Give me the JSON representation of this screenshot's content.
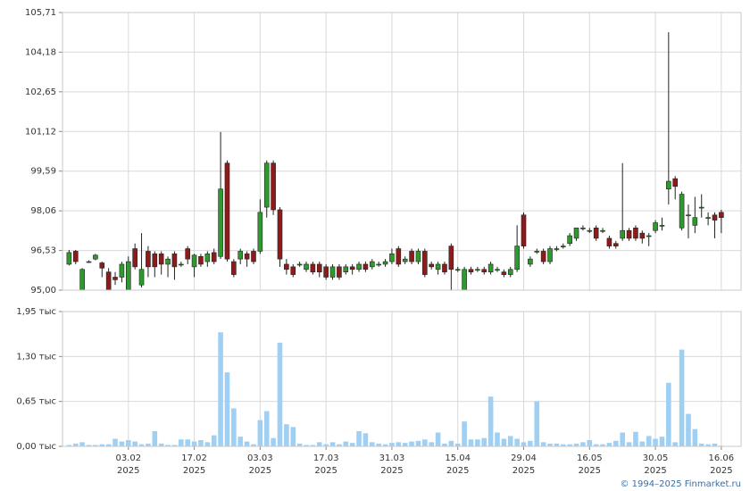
{
  "chart_data": [
    {
      "type": "candlestick",
      "xlim": [
        -1,
        102
      ],
      "ylim": [
        95,
        105.71
      ],
      "yticks": [
        {
          "value": 95,
          "label": "95,00"
        },
        {
          "value": 96.53,
          "label": "96,53"
        },
        {
          "value": 98.06,
          "label": "98,06"
        },
        {
          "value": 99.59,
          "label": "99,59"
        },
        {
          "value": 101.12,
          "label": "101,12"
        },
        {
          "value": 102.65,
          "label": "102,65"
        },
        {
          "value": 104.18,
          "label": "104,18"
        },
        {
          "value": 105.71,
          "label": "105,71"
        }
      ],
      "up_color": "#2e9a2e",
      "down_color": "#8e1b1b",
      "grid": true,
      "open": [
        96.0,
        96.5,
        95.0,
        96.1,
        96.2,
        96.05,
        95.7,
        95.5,
        95.5,
        95.0,
        96.6,
        95.2,
        96.5,
        96.4,
        96.4,
        96.0,
        96.4,
        96.0,
        96.6,
        95.9,
        96.3,
        96.1,
        96.45,
        96.3,
        99.9,
        96.1,
        96.2,
        96.4,
        96.5,
        96.5,
        98.2,
        99.9,
        98.1,
        96.0,
        95.9,
        96.0,
        95.8,
        96.0,
        96.0,
        95.9,
        95.5,
        95.9,
        95.7,
        95.9,
        95.8,
        96.0,
        95.9,
        96.0,
        96.0,
        96.1,
        96.6,
        96.1,
        96.5,
        96.1,
        96.5,
        96.0,
        95.8,
        96.0,
        96.7,
        95.8,
        95.0,
        95.8,
        95.8,
        95.8,
        95.7,
        95.8,
        95.7,
        95.6,
        95.8,
        97.9,
        96.0,
        96.5,
        96.5,
        96.1,
        96.6,
        96.7,
        96.8,
        97.0,
        97.4,
        97.3,
        97.4,
        97.3,
        97.0,
        96.8,
        97.0,
        97.3,
        97.4,
        97.2,
        97.1,
        97.3,
        97.5,
        98.9,
        99.3,
        97.4,
        97.9,
        97.5,
        98.2,
        97.8,
        97.9,
        98.0
      ],
      "high": [
        96.55,
        96.55,
        95.85,
        96.15,
        96.4,
        96.1,
        95.85,
        95.7,
        96.1,
        96.3,
        96.8,
        97.2,
        96.7,
        96.5,
        96.5,
        96.3,
        96.5,
        96.1,
        96.7,
        96.4,
        96.4,
        96.5,
        96.6,
        101.1,
        100.0,
        96.2,
        96.6,
        96.5,
        96.6,
        98.5,
        100.0,
        100.0,
        98.2,
        96.2,
        96.0,
        96.1,
        96.1,
        96.1,
        96.1,
        96.0,
        96.0,
        96.0,
        96.0,
        96.0,
        96.1,
        96.1,
        96.2,
        96.1,
        96.2,
        96.6,
        96.7,
        96.3,
        96.6,
        96.6,
        96.6,
        96.1,
        96.1,
        96.1,
        96.8,
        95.9,
        95.9,
        95.9,
        95.9,
        95.9,
        96.1,
        95.9,
        95.8,
        95.9,
        97.5,
        98.0,
        96.3,
        96.6,
        96.6,
        96.7,
        96.7,
        96.8,
        97.2,
        97.4,
        97.5,
        97.4,
        97.5,
        97.4,
        97.1,
        96.9,
        99.9,
        97.4,
        97.5,
        97.3,
        97.2,
        97.7,
        97.8,
        104.95,
        99.4,
        98.8,
        98.3,
        98.6,
        98.7,
        98.0,
        98.0,
        98.1
      ],
      "low": [
        95.95,
        96.0,
        95.0,
        96.05,
        96.15,
        95.5,
        95.0,
        95.2,
        95.3,
        95.0,
        95.8,
        95.1,
        95.5,
        95.5,
        95.6,
        95.5,
        95.4,
        95.9,
        96.0,
        95.5,
        95.9,
        95.9,
        96.0,
        96.2,
        96.1,
        95.5,
        96.0,
        95.9,
        96.0,
        96.4,
        97.8,
        97.9,
        95.9,
        95.6,
        95.5,
        95.9,
        95.7,
        95.6,
        95.5,
        95.4,
        95.4,
        95.4,
        95.6,
        95.6,
        95.7,
        95.7,
        95.8,
        95.9,
        95.9,
        96.0,
        95.9,
        96.0,
        96.0,
        96.0,
        95.5,
        95.8,
        95.6,
        95.6,
        95.0,
        95.7,
        95.0,
        95.6,
        95.7,
        95.6,
        95.6,
        95.7,
        95.5,
        95.5,
        95.7,
        96.6,
        95.9,
        96.4,
        96.0,
        96.0,
        96.5,
        96.6,
        96.7,
        96.9,
        97.3,
        97.2,
        96.9,
        97.2,
        96.6,
        96.6,
        96.9,
        96.9,
        96.9,
        96.8,
        96.7,
        97.2,
        97.3,
        98.3,
        98.5,
        97.3,
        97.0,
        97.2,
        97.8,
        97.5,
        97.0,
        97.2
      ],
      "close": [
        96.45,
        96.1,
        95.8,
        96.1,
        96.35,
        95.85,
        95.0,
        95.4,
        96.0,
        96.1,
        95.9,
        95.8,
        95.9,
        95.9,
        96.0,
        96.2,
        95.9,
        96.0,
        96.2,
        96.35,
        96.0,
        96.4,
        96.1,
        98.9,
        96.2,
        95.6,
        96.5,
        96.2,
        96.1,
        98.0,
        99.9,
        98.1,
        96.2,
        95.8,
        95.6,
        96.0,
        96.0,
        95.7,
        95.7,
        95.5,
        95.9,
        95.5,
        95.9,
        95.8,
        96.0,
        95.8,
        96.1,
        96.0,
        96.1,
        96.4,
        96.0,
        96.2,
        96.1,
        96.5,
        95.6,
        95.9,
        96.0,
        95.7,
        95.8,
        95.8,
        95.8,
        95.7,
        95.8,
        95.7,
        96.0,
        95.8,
        95.6,
        95.8,
        96.7,
        96.7,
        96.2,
        96.5,
        96.1,
        96.6,
        96.6,
        96.7,
        97.1,
        97.4,
        97.4,
        97.3,
        97.0,
        97.3,
        96.7,
        96.7,
        97.3,
        97.0,
        97.0,
        97.0,
        97.1,
        97.6,
        97.5,
        99.2,
        99.0,
        98.7,
        97.9,
        97.8,
        98.2,
        97.8,
        97.7,
        97.8
      ]
    },
    {
      "type": "bar",
      "xlim": [
        -1,
        102
      ],
      "ylim": [
        0,
        1950
      ],
      "yticks": [
        {
          "value": 0,
          "label": "0,00 тыс"
        },
        {
          "value": 650,
          "label": "0,65 тыс"
        },
        {
          "value": 1300,
          "label": "1,30 тыс"
        },
        {
          "value": 1950,
          "label": "1,95 тыс"
        }
      ],
      "xticks": [
        {
          "value": 9,
          "label": "03.02"
        },
        {
          "value": 19,
          "label": "17.02"
        },
        {
          "value": 29,
          "label": "03.03"
        },
        {
          "value": 39,
          "label": "17.03"
        },
        {
          "value": 49,
          "label": "31.03"
        },
        {
          "value": 59,
          "label": "15.04"
        },
        {
          "value": 69,
          "label": "29.04"
        },
        {
          "value": 79,
          "label": "16.05"
        },
        {
          "value": 89,
          "label": "30.05"
        },
        {
          "value": 99,
          "label": "16.06"
        }
      ],
      "xtick_year": "2025",
      "color": "#9fd0f3",
      "grid": true,
      "values": [
        20,
        40,
        60,
        20,
        20,
        30,
        30,
        110,
        70,
        90,
        70,
        30,
        40,
        220,
        40,
        20,
        20,
        100,
        100,
        70,
        90,
        60,
        160,
        1650,
        1070,
        550,
        140,
        70,
        30,
        380,
        510,
        120,
        1500,
        320,
        280,
        40,
        20,
        20,
        60,
        30,
        60,
        30,
        70,
        50,
        220,
        190,
        60,
        40,
        30,
        50,
        60,
        50,
        70,
        80,
        100,
        60,
        200,
        40,
        80,
        40,
        360,
        100,
        100,
        120,
        720,
        200,
        110,
        150,
        110,
        60,
        80,
        650,
        60,
        40,
        40,
        30,
        30,
        40,
        60,
        90,
        30,
        30,
        50,
        80,
        200,
        60,
        210,
        70,
        150,
        110,
        140,
        920,
        60,
        1400,
        470,
        250,
        40,
        30,
        40,
        10
      ]
    }
  ],
  "footer": "© 1994–2025 Finmarket.ru"
}
